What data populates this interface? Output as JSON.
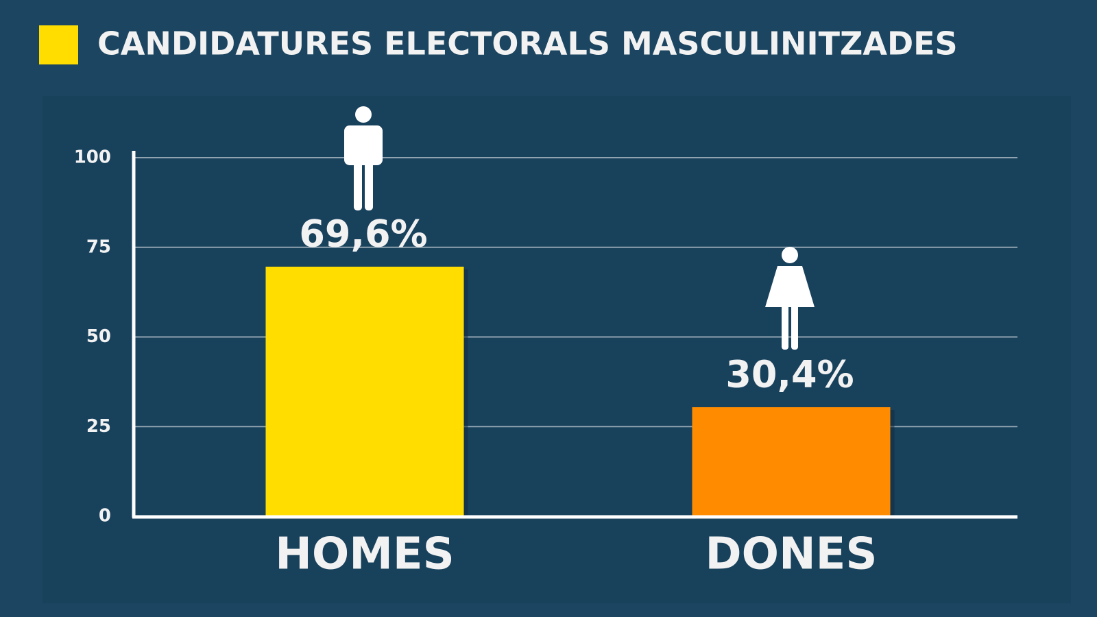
{
  "chart_data": {
    "type": "bar",
    "title": "CANDIDATURES ELECTORALS MASCULINITZADES",
    "categories": [
      "HOMES",
      "DONES"
    ],
    "values": [
      69.6,
      30.4
    ],
    "value_labels": [
      "69,6%",
      "30,4%"
    ],
    "colors": [
      "#ffdd00",
      "#ff8c00"
    ],
    "ylim": [
      0,
      100
    ],
    "yticks": [
      0,
      25,
      50,
      75,
      100
    ],
    "grid": true
  }
}
